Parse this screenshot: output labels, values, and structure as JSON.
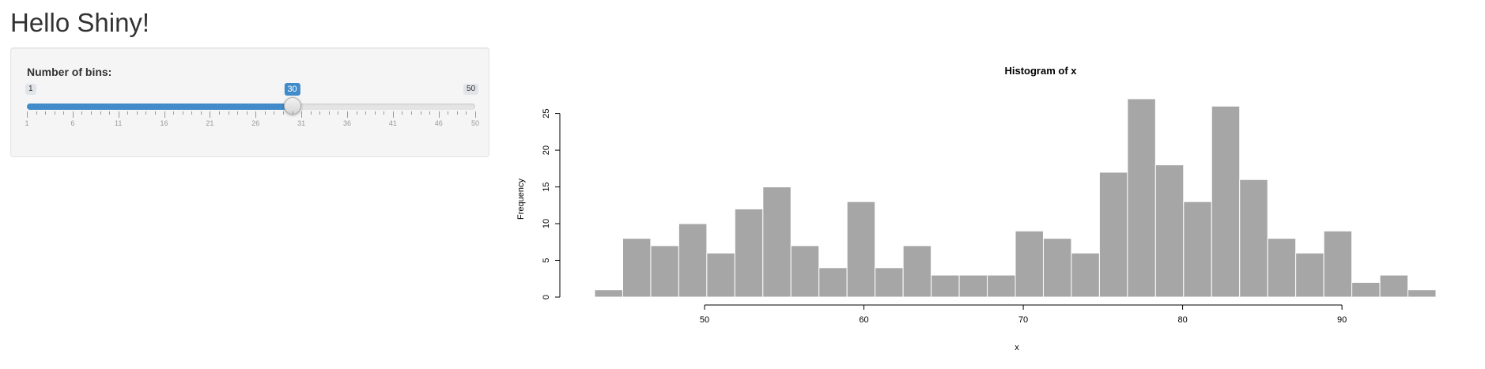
{
  "app": {
    "title": "Hello Shiny!"
  },
  "sidebar": {
    "slider": {
      "label": "Number of bins:",
      "min": 1,
      "max": 50,
      "value": 30,
      "min_label": "1",
      "max_label": "50",
      "value_label": "30",
      "grid_labels": [
        "1",
        "6",
        "11",
        "16",
        "21",
        "26",
        "31",
        "36",
        "41",
        "46",
        "50"
      ],
      "accent_color": "#428bca"
    }
  },
  "chart_data": {
    "type": "bar",
    "title": "Histogram of x",
    "xlabel": "x",
    "ylabel": "Frequency",
    "bin_width": 1.76,
    "bin_start": 43.1,
    "values": [
      1,
      8,
      7,
      10,
      6,
      12,
      15,
      7,
      4,
      13,
      4,
      7,
      3,
      3,
      3,
      9,
      8,
      6,
      17,
      27,
      18,
      13,
      26,
      16,
      8,
      6,
      9,
      2,
      3,
      1
    ],
    "x_ticks": [
      50,
      60,
      70,
      80,
      90
    ],
    "y_ticks": [
      0,
      5,
      10,
      15,
      20,
      25
    ],
    "xlim": [
      43.1,
      95.9
    ],
    "ylim": [
      0,
      27
    ],
    "bar_color": "#a6a6a6",
    "grid": false
  }
}
